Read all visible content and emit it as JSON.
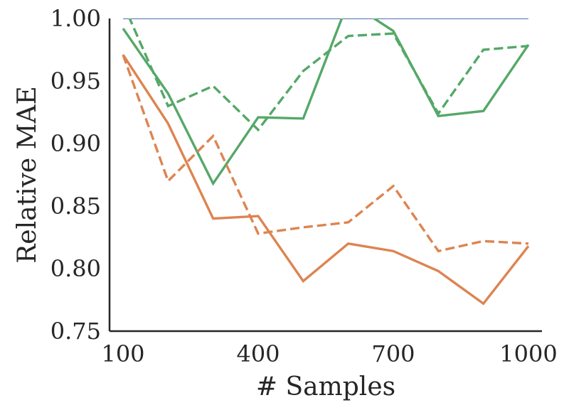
{
  "chart_data": {
    "type": "line",
    "xlabel": "# Samples",
    "ylabel": "Relative MAE",
    "xlim": [
      70,
      1030
    ],
    "ylim": [
      0.75,
      1.0
    ],
    "xticks": [
      100,
      400,
      700,
      1000
    ],
    "xtick_labels": [
      "100",
      "400",
      "700",
      "1000"
    ],
    "yticks": [
      0.75,
      0.8,
      0.85,
      0.9,
      0.95,
      1.0
    ],
    "ytick_labels": [
      "0.75",
      "0.80",
      "0.85",
      "0.90",
      "0.95",
      "1.00"
    ],
    "grid": false,
    "series": [
      {
        "color": "#4c72b0",
        "dash": "solid",
        "x": [
          100,
          1000
        ],
        "y": [
          1.0,
          1.0
        ]
      },
      {
        "color": "#55a868",
        "dash": "solid",
        "x": [
          100,
          200,
          300,
          400,
          500,
          600,
          700,
          800,
          900,
          1000
        ],
        "y": [
          0.992,
          0.94,
          0.868,
          0.921,
          0.92,
          1.0135,
          0.99,
          0.922,
          0.926,
          0.979
        ]
      },
      {
        "color": "#55a868",
        "dash": "dashed",
        "x": [
          100,
          200,
          300,
          400,
          500,
          600,
          700,
          800,
          900,
          1000
        ],
        "y": [
          1.012,
          0.93,
          0.946,
          0.911,
          0.958,
          0.986,
          0.988,
          0.924,
          0.975,
          0.978
        ]
      },
      {
        "color": "#dd8452",
        "dash": "solid",
        "x": [
          100,
          200,
          300,
          400,
          500,
          600,
          700,
          800,
          900,
          1000
        ],
        "y": [
          0.971,
          0.916,
          0.84,
          0.842,
          0.79,
          0.82,
          0.814,
          0.798,
          0.772,
          0.818
        ]
      },
      {
        "color": "#dd8452",
        "dash": "dashed",
        "x": [
          100,
          200,
          300,
          400,
          500,
          600,
          700,
          800,
          900,
          1000
        ],
        "y": [
          0.971,
          0.87,
          0.906,
          0.828,
          0.833,
          0.837,
          0.866,
          0.814,
          0.822,
          0.82
        ]
      }
    ]
  }
}
